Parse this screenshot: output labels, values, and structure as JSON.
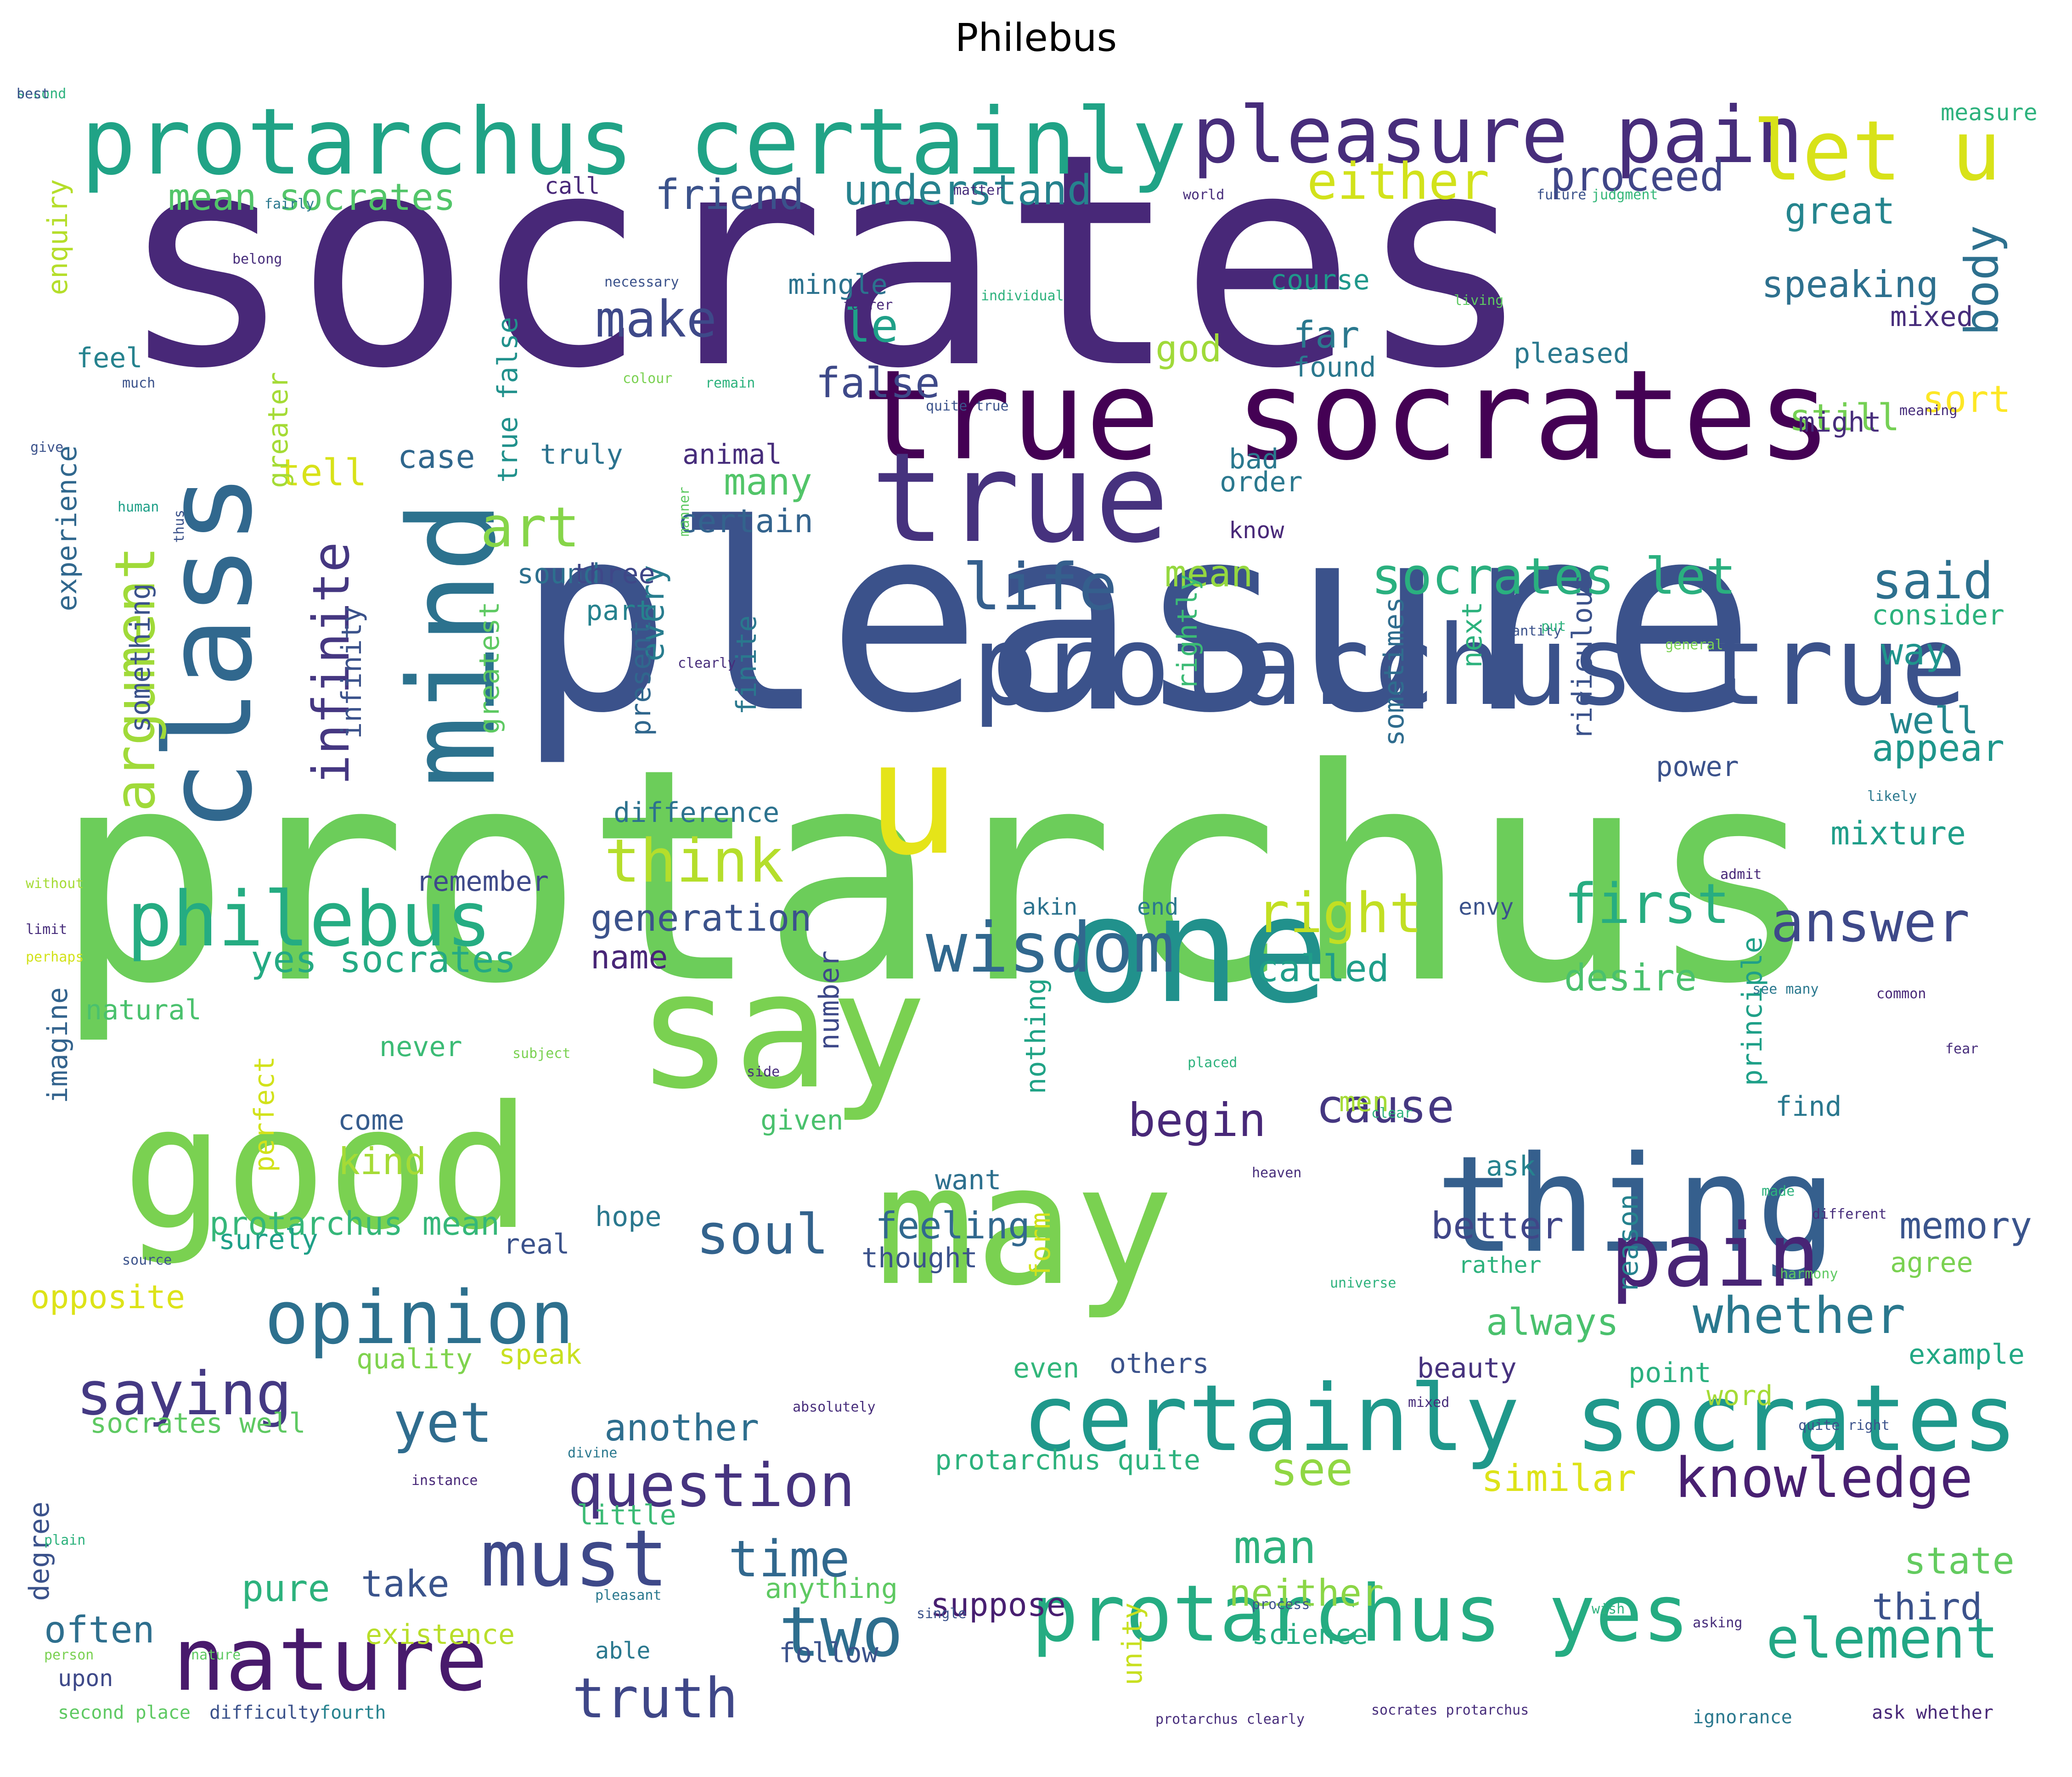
{
  "title": "Philebus",
  "words": [
    {
      "text": "socrates",
      "color": "#482878"
    },
    {
      "text": "pleasure",
      "color": "#3b528b"
    },
    {
      "text": "protarchus",
      "color": "#6ccd5a"
    },
    {
      "text": "protarchus certainly",
      "color": "#20a386"
    },
    {
      "text": "pleasure pain",
      "color": "#472d7b"
    },
    {
      "text": "let u",
      "color": "#d8e219"
    },
    {
      "text": "true socrates",
      "color": "#440154"
    },
    {
      "text": "true",
      "color": "#46327e"
    },
    {
      "text": "class",
      "color": "#31688e"
    },
    {
      "text": "mind",
      "color": "#2c728e"
    },
    {
      "text": "u",
      "color": "#e5e419"
    },
    {
      "text": "protarchus true",
      "color": "#3b528b"
    },
    {
      "text": "one",
      "color": "#21918c"
    },
    {
      "text": "say",
      "color": "#7ad151"
    },
    {
      "text": "good",
      "color": "#7ad151"
    },
    {
      "text": "may",
      "color": "#7ad151"
    },
    {
      "text": "thing",
      "color": "#355f8d"
    },
    {
      "text": "certainly socrates",
      "color": "#1f988b"
    },
    {
      "text": "protarchus yes",
      "color": "#25ac82"
    },
    {
      "text": "nature",
      "color": "#481a6c"
    },
    {
      "text": "philebus",
      "color": "#25ac82"
    },
    {
      "text": "argument",
      "color": "#a0da39"
    },
    {
      "text": "infinite",
      "color": "#453781"
    },
    {
      "text": "opinion",
      "color": "#2d708e"
    },
    {
      "text": "pain",
      "color": "#482475"
    },
    {
      "text": "wisdom",
      "color": "#31688e"
    },
    {
      "text": "life",
      "color": "#355f8d"
    },
    {
      "text": "art",
      "color": "#86d549"
    },
    {
      "text": "think",
      "color": "#b5de2b"
    },
    {
      "text": "right",
      "color": "#c2df23"
    },
    {
      "text": "first",
      "color": "#27ad81"
    },
    {
      "text": "answer",
      "color": "#3e4989"
    },
    {
      "text": "body",
      "color": "#2d708e"
    },
    {
      "text": "either",
      "color": "#d2e21b"
    },
    {
      "text": "proceed",
      "color": "#404688"
    },
    {
      "text": "friend",
      "color": "#3b528b"
    },
    {
      "text": "understand",
      "color": "#26828e"
    },
    {
      "text": "mean socrates",
      "color": "#52c569"
    },
    {
      "text": "make",
      "color": "#3e4989"
    },
    {
      "text": "le",
      "color": "#1fa088"
    },
    {
      "text": "false",
      "color": "#3e4989"
    },
    {
      "text": "god",
      "color": "#a0da39"
    },
    {
      "text": "far",
      "color": "#2a788e"
    },
    {
      "text": "found",
      "color": "#2a788e"
    },
    {
      "text": "speaking",
      "color": "#2d708e"
    },
    {
      "text": "great",
      "color": "#25858e"
    },
    {
      "text": "still",
      "color": "#75d054"
    },
    {
      "text": "sort",
      "color": "#fde725"
    },
    {
      "text": "might",
      "color": "#472d7b"
    },
    {
      "text": "case",
      "color": "#30678d"
    },
    {
      "text": "tell",
      "color": "#d8e219"
    },
    {
      "text": "many",
      "color": "#52c569"
    },
    {
      "text": "certain",
      "color": "#33638d"
    },
    {
      "text": "every",
      "color": "#287d8e"
    },
    {
      "text": "socrates let",
      "color": "#2ab07f"
    },
    {
      "text": "said",
      "color": "#2d708e"
    },
    {
      "text": "mean",
      "color": "#95d840"
    },
    {
      "text": "consider",
      "color": "#2db27d"
    },
    {
      "text": "way",
      "color": "#1f948c"
    },
    {
      "text": "well",
      "color": "#24868e"
    },
    {
      "text": "appear",
      "color": "#1f968b"
    },
    {
      "text": "mixture",
      "color": "#1f9e89"
    },
    {
      "text": "generation",
      "color": "#3b528b"
    },
    {
      "text": "name",
      "color": "#482677"
    },
    {
      "text": "yes socrates",
      "color": "#24aa83"
    },
    {
      "text": "called",
      "color": "#1f9e89"
    },
    {
      "text": "desire",
      "color": "#4ac16d"
    },
    {
      "text": "soul",
      "color": "#33638d"
    },
    {
      "text": "saying",
      "color": "#443983"
    },
    {
      "text": "yet",
      "color": "#2f6c8e"
    },
    {
      "text": "another",
      "color": "#2e6e8e"
    },
    {
      "text": "question",
      "color": "#46337f"
    },
    {
      "text": "knowledge",
      "color": "#482071"
    },
    {
      "text": "see",
      "color": "#90d743"
    },
    {
      "text": "similar",
      "color": "#dde318"
    },
    {
      "text": "time",
      "color": "#31688e"
    },
    {
      "text": "must",
      "color": "#3e4989"
    },
    {
      "text": "two",
      "color": "#2e6e8e"
    },
    {
      "text": "truth",
      "color": "#3f4788"
    },
    {
      "text": "man",
      "color": "#2db27d"
    },
    {
      "text": "neither",
      "color": "#8bd646"
    },
    {
      "text": "state",
      "color": "#63cb5f"
    },
    {
      "text": "third",
      "color": "#3b528b"
    },
    {
      "text": "element",
      "color": "#22a785"
    },
    {
      "text": "suppose",
      "color": "#481f70"
    },
    {
      "text": "pure",
      "color": "#2db27d"
    },
    {
      "text": "take",
      "color": "#3a548c"
    },
    {
      "text": "often",
      "color": "#2e6f8e"
    },
    {
      "text": "existence",
      "color": "#b8de29"
    },
    {
      "text": "opposite",
      "color": "#dde318"
    },
    {
      "text": "protarchus mean",
      "color": "#35b779"
    },
    {
      "text": "feeling",
      "color": "#31688e"
    },
    {
      "text": "whether",
      "color": "#2a788e"
    },
    {
      "text": "always",
      "color": "#4ac16d"
    },
    {
      "text": "better",
      "color": "#404688"
    },
    {
      "text": "memory",
      "color": "#3a548c"
    },
    {
      "text": "agree",
      "color": "#7ad151"
    },
    {
      "text": "example",
      "color": "#22a884"
    },
    {
      "text": "beauty",
      "color": "#46327e"
    },
    {
      "text": "point",
      "color": "#2ab07f"
    },
    {
      "text": "others",
      "color": "#3b528b"
    },
    {
      "text": "even",
      "color": "#32b67a"
    },
    {
      "text": "speak",
      "color": "#c8e020"
    },
    {
      "text": "quality",
      "color": "#7fd34e"
    },
    {
      "text": "socrates well",
      "color": "#5ec962"
    },
    {
      "text": "protarchus quite",
      "color": "#2db27d"
    },
    {
      "text": "little",
      "color": "#3bbb75"
    },
    {
      "text": "anything",
      "color": "#5ec962"
    },
    {
      "text": "science",
      "color": "#25ac82"
    },
    {
      "text": "begin",
      "color": "#482878"
    },
    {
      "text": "cause",
      "color": "#453781"
    },
    {
      "text": "kind",
      "color": "#a5db36"
    },
    {
      "text": "come",
      "color": "#365c8d"
    },
    {
      "text": "number",
      "color": "#3e4989"
    },
    {
      "text": "nothing",
      "color": "#20a386"
    },
    {
      "text": "never",
      "color": "#3bbb75"
    },
    {
      "text": "perfect",
      "color": "#d2e21b"
    },
    {
      "text": "natural",
      "color": "#4ac16d"
    },
    {
      "text": "imagine",
      "color": "#33638d"
    },
    {
      "text": "remember",
      "color": "#3e4989"
    },
    {
      "text": "difference",
      "color": "#2c728e"
    },
    {
      "text": "greatest",
      "color": "#5ec962"
    },
    {
      "text": "infinity",
      "color": "#3b528b"
    },
    {
      "text": "something",
      "color": "#3b528b"
    },
    {
      "text": "experience",
      "color": "#31688e"
    },
    {
      "text": "enquiry",
      "color": "#b5de2b"
    },
    {
      "text": "greater",
      "color": "#a5db36"
    },
    {
      "text": "true false",
      "color": "#21918c"
    },
    {
      "text": "truly",
      "color": "#2c728e"
    },
    {
      "text": "sound",
      "color": "#2d708e"
    },
    {
      "text": "three",
      "color": "#3f4788"
    },
    {
      "text": "part",
      "color": "#26828e"
    },
    {
      "text": "finite",
      "color": "#2a788e"
    },
    {
      "text": "present",
      "color": "#30678d"
    },
    {
      "text": "rightly",
      "color": "#3bbb75"
    },
    {
      "text": "sometimes",
      "color": "#2f6c8e"
    },
    {
      "text": "next",
      "color": "#2db27d"
    },
    {
      "text": "ridiculous",
      "color": "#3b528b"
    },
    {
      "text": "power",
      "color": "#3b528b"
    },
    {
      "text": "principle",
      "color": "#1fa088"
    },
    {
      "text": "reason",
      "color": "#26828e"
    },
    {
      "text": "form",
      "color": "#d2e21b"
    },
    {
      "text": "unity",
      "color": "#c8e020"
    },
    {
      "text": "bad",
      "color": "#2a788e"
    },
    {
      "text": "order",
      "color": "#2a788e"
    },
    {
      "text": "know",
      "color": "#482878"
    },
    {
      "text": "animal",
      "color": "#472d7b"
    },
    {
      "text": "mingle",
      "color": "#2c728e"
    },
    {
      "text": "course",
      "color": "#1f988b"
    },
    {
      "text": "mixed",
      "color": "#472d7b"
    },
    {
      "text": "pleased",
      "color": "#2a788e"
    },
    {
      "text": "feel",
      "color": "#26828e"
    },
    {
      "text": "call",
      "color": "#482878"
    },
    {
      "text": "measure",
      "color": "#2db27d"
    },
    {
      "text": "akin",
      "color": "#2c728e"
    },
    {
      "text": "end",
      "color": "#2a788e"
    },
    {
      "text": "envy",
      "color": "#3b528b"
    },
    {
      "text": "want",
      "color": "#2d708e"
    },
    {
      "text": "ask",
      "color": "#26828e"
    },
    {
      "text": "find",
      "color": "#2a788e"
    },
    {
      "text": "given",
      "color": "#4ac16d"
    },
    {
      "text": "surely",
      "color": "#1fa088"
    },
    {
      "text": "hope",
      "color": "#2a788e"
    },
    {
      "text": "real",
      "color": "#3b528b"
    },
    {
      "text": "thought",
      "color": "#3b528b"
    },
    {
      "text": "rather",
      "color": "#2db27d"
    },
    {
      "text": "upon",
      "color": "#3e4989"
    },
    {
      "text": "able",
      "color": "#2a788e"
    },
    {
      "text": "follow",
      "color": "#3b528b"
    },
    {
      "text": "degree",
      "color": "#3b528b"
    },
    {
      "text": "word",
      "color": "#a5db36"
    },
    {
      "text": "men",
      "color": "#a5db36"
    },
    {
      "text": "second place",
      "color": "#5ec962"
    },
    {
      "text": "difficulty",
      "color": "#3b528b"
    },
    {
      "text": "fourth",
      "color": "#26828e"
    },
    {
      "text": "protarchus clearly",
      "color": "#472d7b"
    },
    {
      "text": "socrates protarchus",
      "color": "#472d7b"
    },
    {
      "text": "ignorance",
      "color": "#2a788e"
    },
    {
      "text": "ask whether",
      "color": "#482878"
    },
    {
      "text": "matter",
      "color": "#472d7b"
    },
    {
      "text": "world",
      "color": "#472d7b"
    },
    {
      "text": "future",
      "color": "#3b528b"
    },
    {
      "text": "judgment",
      "color": "#35b779"
    },
    {
      "text": "belong",
      "color": "#472d7b"
    },
    {
      "text": "fairly",
      "color": "#2a788e"
    },
    {
      "text": "necessary",
      "color": "#3b528b"
    },
    {
      "text": "fairer",
      "color": "#482878"
    },
    {
      "text": "living",
      "color": "#5ec962"
    },
    {
      "text": "individual",
      "color": "#2db27d"
    },
    {
      "text": "colour",
      "color": "#7ad151"
    },
    {
      "text": "much",
      "color": "#3b528b"
    },
    {
      "text": "remain",
      "color": "#2db27d"
    },
    {
      "text": "quite true",
      "color": "#3b528b"
    },
    {
      "text": "meaning",
      "color": "#472d7b"
    },
    {
      "text": "give",
      "color": "#3b528b"
    },
    {
      "text": "human",
      "color": "#1fa088"
    },
    {
      "text": "thus",
      "color": "#3b528b"
    },
    {
      "text": "manner",
      "color": "#5ec962"
    },
    {
      "text": "quantity",
      "color": "#3b528b"
    },
    {
      "text": "put",
      "color": "#2db27d"
    },
    {
      "text": "clearly",
      "color": "#472d7b"
    },
    {
      "text": "general",
      "color": "#7ad151"
    },
    {
      "text": "likely",
      "color": "#2a788e"
    },
    {
      "text": "without",
      "color": "#a5db36"
    },
    {
      "text": "admit",
      "color": "#482878"
    },
    {
      "text": "limit",
      "color": "#472d7b"
    },
    {
      "text": "perhaps",
      "color": "#d2e21b"
    },
    {
      "text": "see many",
      "color": "#2a788e"
    },
    {
      "text": "common",
      "color": "#482878"
    },
    {
      "text": "subject",
      "color": "#7ad151"
    },
    {
      "text": "placed",
      "color": "#2db27d"
    },
    {
      "text": "clear",
      "color": "#2db27d"
    },
    {
      "text": "side",
      "color": "#472d7b"
    },
    {
      "text": "heaven",
      "color": "#472d7b"
    },
    {
      "text": "fear",
      "color": "#472d7b"
    },
    {
      "text": "made",
      "color": "#2db27d"
    },
    {
      "text": "different",
      "color": "#472d7b"
    },
    {
      "text": "universe",
      "color": "#2db27d"
    },
    {
      "text": "harmony",
      "color": "#5ec962"
    },
    {
      "text": "absolutely",
      "color": "#472d7b"
    },
    {
      "text": "divine",
      "color": "#2a788e"
    },
    {
      "text": "mixed",
      "color": "#472d7b"
    },
    {
      "text": "quite right",
      "color": "#3b528b"
    },
    {
      "text": "instance",
      "color": "#482878"
    },
    {
      "text": "pleasant",
      "color": "#2a788e"
    },
    {
      "text": "single",
      "color": "#3b528b"
    },
    {
      "text": "process",
      "color": "#3b528b"
    },
    {
      "text": "asking",
      "color": "#472d7b"
    },
    {
      "text": "nature",
      "color": "#5ec962"
    },
    {
      "text": "plain",
      "color": "#2db27d"
    },
    {
      "text": "source",
      "color": "#3b528b"
    },
    {
      "text": "person",
      "color": "#7ad151"
    },
    {
      "text": "wish",
      "color": "#2db27d"
    },
    {
      "text": "second",
      "color": "#2db27d"
    },
    {
      "text": "best",
      "color": "#3b528b"
    }
  ]
}
